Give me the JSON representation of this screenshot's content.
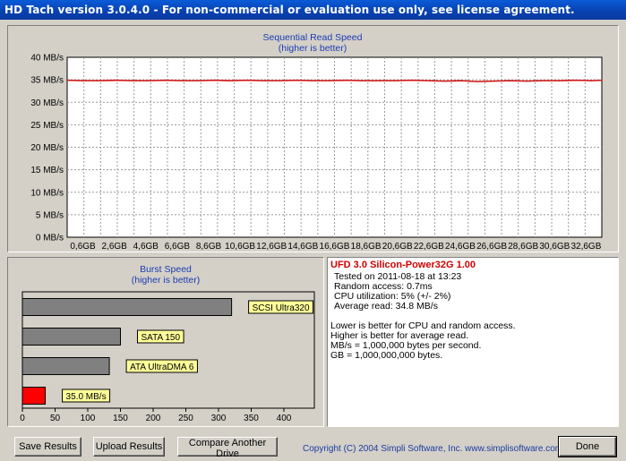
{
  "window": {
    "title": "HD Tach version 3.0.4.0  - For non-commercial or evaluation use only, see license agreement."
  },
  "seq_chart": {
    "title": "Sequential Read Speed",
    "subtitle": "(higher is better)",
    "y_ticks": [
      "40 MB/s",
      "35 MB/s",
      "30 MB/s",
      "25 MB/s",
      "20 MB/s",
      "15 MB/s",
      "10 MB/s",
      "5 MB/s",
      "0 MB/s"
    ],
    "x_ticks": [
      "0,6GB",
      "2,6GB",
      "4,6GB",
      "6,6GB",
      "8,6GB",
      "10,6GB",
      "12,6GB",
      "14,6GB",
      "16,6GB",
      "18,6GB",
      "20,6GB",
      "22,6GB",
      "24,6GB",
      "26,6GB",
      "28,6GB",
      "30,6GB",
      "32,6GB"
    ]
  },
  "burst_chart": {
    "title": "Burst Speed",
    "subtitle": "(higher is better)",
    "x_ticks": [
      "0",
      "50",
      "100",
      "150",
      "200",
      "250",
      "300",
      "350",
      "400"
    ]
  },
  "chart_data": [
    {
      "type": "line",
      "title": "Sequential Read Speed",
      "subtitle": "(higher is better)",
      "xlabel": "",
      "ylabel": "",
      "xlim": [
        0,
        32.6
      ],
      "ylim": [
        0,
        40
      ],
      "grid": true,
      "series": [
        {
          "color": "#d01010",
          "x": [
            0,
            1,
            2,
            3,
            4,
            5,
            6,
            7,
            8,
            9,
            10,
            11,
            12,
            13,
            14,
            15,
            16,
            17,
            18,
            19,
            20,
            21,
            22,
            23,
            24,
            25,
            26,
            27,
            28,
            29,
            30,
            31,
            32,
            32.6
          ],
          "y": [
            34.9,
            34.8,
            34.8,
            34.9,
            34.8,
            34.8,
            34.9,
            34.8,
            34.8,
            34.9,
            34.8,
            34.9,
            34.8,
            34.8,
            34.9,
            34.8,
            34.8,
            34.9,
            34.8,
            34.8,
            34.8,
            34.9,
            34.8,
            34.7,
            34.8,
            34.6,
            34.7,
            34.8,
            34.7,
            34.8,
            34.8,
            34.9,
            34.8,
            34.9
          ]
        }
      ]
    },
    {
      "type": "bar",
      "orientation": "horizontal",
      "title": "Burst Speed",
      "subtitle": "(higher is better)",
      "xlim": [
        0,
        400
      ],
      "grid": false,
      "categories": [
        "SCSI Ultra320",
        "SATA 150",
        "ATA UltraDMA 6",
        "35.0 MB/s"
      ],
      "values": [
        320,
        150,
        133,
        35.0
      ],
      "colors": [
        "#808080",
        "#808080",
        "#808080",
        "#ff0000"
      ]
    }
  ],
  "info": {
    "drive": "UFD 3.0 Silicon-Power32G 1.00",
    "tested": "Tested on 2011-08-18 at 13:23",
    "random_access": "Random access: 0.7ms",
    "cpu": "CPU utilization: 5% (+/- 2%)",
    "average_read": "Average read: 34.8 MB/s",
    "note1": "Lower is better for CPU and random access.",
    "note2": "Higher is better for average read.",
    "note3": "MB/s = 1,000,000 bytes per second.",
    "note4": "GB = 1,000,000,000 bytes."
  },
  "buttons": {
    "save": "Save Results",
    "upload": "Upload Results",
    "compare": "Compare Another Drive",
    "done": "Done"
  },
  "copyright": "Copyright (C) 2004 Simpli Software, Inc. www.simplisoftware.com"
}
